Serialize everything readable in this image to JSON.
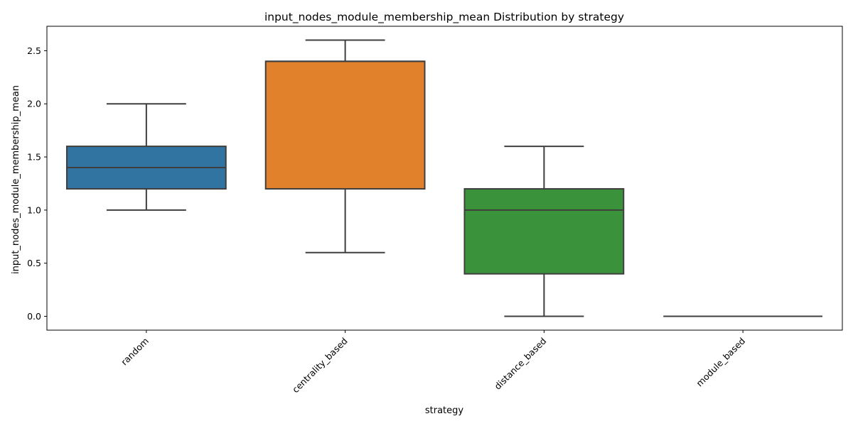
{
  "chart_data": {
    "type": "box",
    "title": "input_nodes_module_membership_mean Distribution by strategy",
    "xlabel": "strategy",
    "ylabel": "input_nodes_module_membership_mean",
    "categories": [
      "random",
      "centrality_based",
      "distance_based",
      "module_based"
    ],
    "boxes": [
      {
        "category": "random",
        "whisker_low": 1.0,
        "q1": 1.2,
        "median": 1.4,
        "q3": 1.6,
        "whisker_high": 2.0,
        "color": "#3274a1"
      },
      {
        "category": "centrality_based",
        "whisker_low": 0.6,
        "q1": 1.2,
        "median": 2.4,
        "q3": 2.4,
        "whisker_high": 2.6,
        "color": "#e1812c"
      },
      {
        "category": "distance_based",
        "whisker_low": 0.0,
        "q1": 0.4,
        "median": 1.0,
        "q3": 1.2,
        "whisker_high": 1.6,
        "color": "#3a923a"
      },
      {
        "category": "module_based",
        "whisker_low": 0.0,
        "q1": 0.0,
        "median": 0.0,
        "q3": 0.0,
        "whisker_high": 0.0,
        "color": "#c03d3e"
      }
    ],
    "yticks": [
      "0.0",
      "0.5",
      "1.0",
      "1.5",
      "2.0",
      "2.5"
    ],
    "ylim": [
      -0.13,
      2.73
    ],
    "grid": false,
    "legend": "none"
  }
}
